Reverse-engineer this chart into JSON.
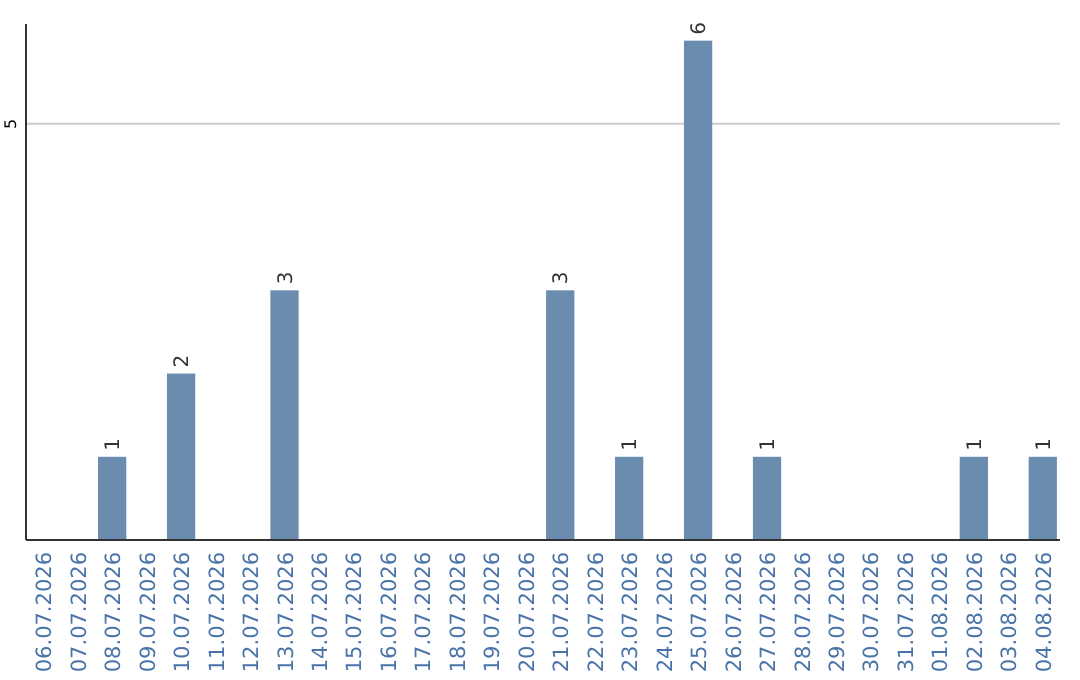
{
  "chart_data": {
    "type": "bar",
    "categories": [
      "06.07.2026",
      "07.07.2026",
      "08.07.2026",
      "09.07.2026",
      "10.07.2026",
      "11.07.2026",
      "12.07.2026",
      "13.07.2026",
      "14.07.2026",
      "15.07.2026",
      "16.07.2026",
      "17.07.2026",
      "18.07.2026",
      "19.07.2026",
      "20.07.2026",
      "21.07.2026",
      "22.07.2026",
      "23.07.2026",
      "24.07.2026",
      "25.07.2026",
      "26.07.2026",
      "27.07.2026",
      "28.07.2026",
      "29.07.2026",
      "30.07.2026",
      "31.07.2026",
      "01.08.2026",
      "02.08.2026",
      "03.08.2026",
      "04.08.2026"
    ],
    "values": [
      0,
      0,
      1,
      0,
      2,
      0,
      0,
      3,
      0,
      0,
      0,
      0,
      0,
      0,
      0,
      3,
      0,
      1,
      0,
      6,
      0,
      1,
      0,
      0,
      0,
      0,
      0,
      1,
      0,
      1
    ],
    "value_labels": [
      null,
      null,
      "1",
      null,
      "2",
      null,
      null,
      "3",
      null,
      null,
      null,
      null,
      null,
      null,
      null,
      "3",
      null,
      "1",
      null,
      "6",
      null,
      "1",
      null,
      null,
      null,
      null,
      null,
      "1",
      null,
      "1"
    ],
    "color": "#6a8caf",
    "ylim": [
      0,
      6.2
    ],
    "yticks": [
      5
    ],
    "grid": "y"
  }
}
